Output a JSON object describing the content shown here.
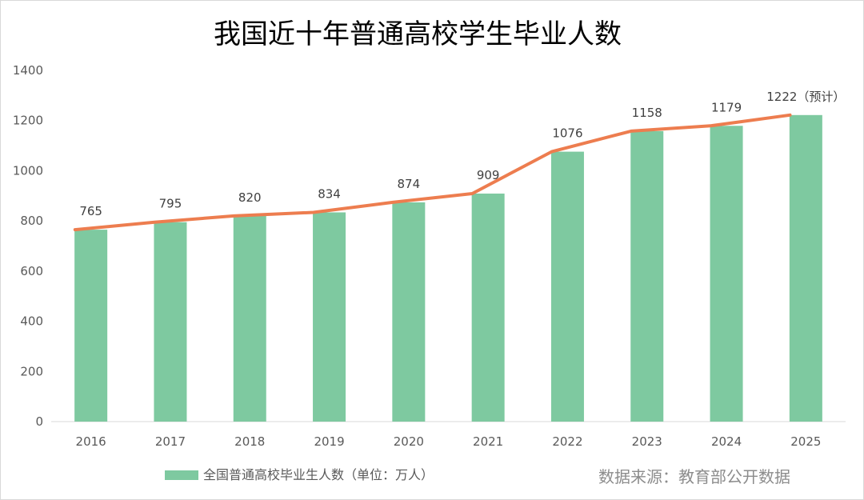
{
  "chart_data": {
    "type": "bar",
    "title": "我国近十年普通高校学生毕业人数",
    "categories": [
      "2016",
      "2017",
      "2018",
      "2019",
      "2020",
      "2021",
      "2022",
      "2023",
      "2024",
      "2025"
    ],
    "series": [
      {
        "name": "全国普通高校毕业生人数（单位：万人）",
        "type": "bar",
        "values": [
          765,
          795,
          820,
          834,
          874,
          909,
          1076,
          1158,
          1179,
          1222
        ],
        "color": "#7ec9a0"
      },
      {
        "type": "line",
        "values": [
          765,
          795,
          820,
          834,
          874,
          909,
          1076,
          1158,
          1179,
          1222
        ],
        "color": "#ed7d4f"
      }
    ],
    "data_labels": [
      "765",
      "795",
      "820",
      "834",
      "874",
      "909",
      "1076",
      "1158",
      "1179",
      "1222（预计）"
    ],
    "ylim": [
      0,
      1400
    ],
    "yticks": [
      "0",
      "200",
      "400",
      "600",
      "800",
      "1000",
      "1200",
      "1400"
    ],
    "grid": false,
    "legend_position": "bottom-left",
    "source": "数据来源：教育部公开数据"
  }
}
